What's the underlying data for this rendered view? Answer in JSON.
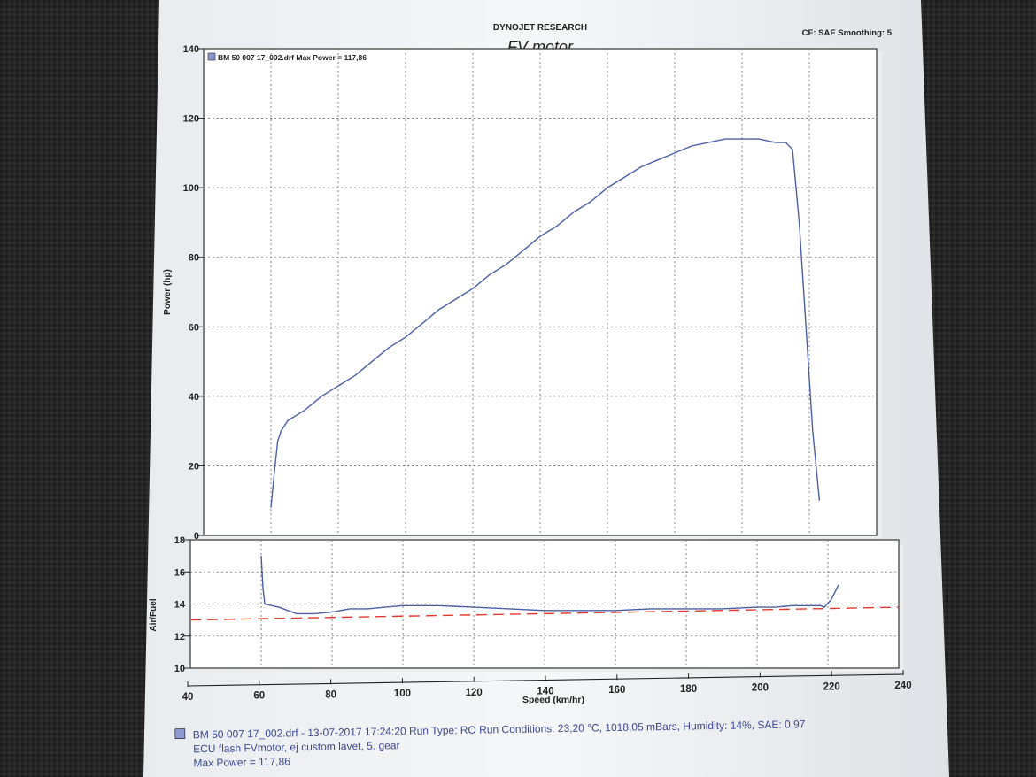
{
  "header": {
    "company": "DYNOJET RESEARCH",
    "title": "FV motor",
    "settings": "CF: SAE  Smoothing: 5"
  },
  "colors": {
    "curve": "#4a5fa6",
    "afr_reference": "#e03a2e",
    "paper": "#f4f5f7",
    "background": "#242424"
  },
  "chart_data": [
    {
      "type": "line",
      "title": "FV motor",
      "legend_label": "BM 50 007 17_002.drf Max Power = 117,86",
      "legend_position": "top-left",
      "ylabel": "Power (hp)",
      "xlim": [
        40,
        240
      ],
      "ylim": [
        0,
        140
      ],
      "yticks": [
        0,
        20,
        40,
        60,
        80,
        100,
        120,
        140
      ],
      "grid": true,
      "series": [
        {
          "name": "BM 50 007 17_002.drf",
          "points": [
            [
              60,
              8
            ],
            [
              61,
              18
            ],
            [
              62,
              27
            ],
            [
              63,
              30
            ],
            [
              65,
              33
            ],
            [
              70,
              36
            ],
            [
              75,
              40
            ],
            [
              80,
              43
            ],
            [
              85,
              46
            ],
            [
              90,
              50
            ],
            [
              95,
              54
            ],
            [
              100,
              57
            ],
            [
              105,
              61
            ],
            [
              110,
              65
            ],
            [
              115,
              68
            ],
            [
              120,
              71
            ],
            [
              125,
              75
            ],
            [
              130,
              78
            ],
            [
              135,
              82
            ],
            [
              140,
              86
            ],
            [
              145,
              89
            ],
            [
              150,
              93
            ],
            [
              155,
              96
            ],
            [
              160,
              100
            ],
            [
              165,
              103
            ],
            [
              170,
              106
            ],
            [
              175,
              108
            ],
            [
              180,
              110
            ],
            [
              185,
              112
            ],
            [
              190,
              113
            ],
            [
              195,
              114
            ],
            [
              200,
              114
            ],
            [
              205,
              114
            ],
            [
              210,
              113
            ],
            [
              213,
              113
            ],
            [
              215,
              111
            ],
            [
              217,
              90
            ],
            [
              219,
              60
            ],
            [
              221,
              30
            ],
            [
              223,
              10
            ]
          ]
        }
      ]
    },
    {
      "type": "line",
      "ylabel": "Air/Fuel",
      "xlabel": "Speed (km/hr)",
      "xlim": [
        40,
        240
      ],
      "ylim": [
        10,
        18
      ],
      "yticks": [
        10,
        12,
        14,
        16,
        18
      ],
      "xticks": [
        40,
        60,
        80,
        100,
        120,
        140,
        160,
        180,
        200,
        220,
        240
      ],
      "grid": true,
      "series": [
        {
          "name": "BM 50 007 17_002.drf",
          "points": [
            [
              60,
              17
            ],
            [
              60.5,
              15
            ],
            [
              61,
              14
            ],
            [
              65,
              13.8
            ],
            [
              70,
              13.4
            ],
            [
              75,
              13.4
            ],
            [
              80,
              13.5
            ],
            [
              85,
              13.7
            ],
            [
              90,
              13.7
            ],
            [
              95,
              13.8
            ],
            [
              100,
              13.9
            ],
            [
              110,
              13.9
            ],
            [
              120,
              13.8
            ],
            [
              130,
              13.7
            ],
            [
              140,
              13.6
            ],
            [
              150,
              13.6
            ],
            [
              160,
              13.6
            ],
            [
              170,
              13.7
            ],
            [
              180,
              13.7
            ],
            [
              190,
              13.7
            ],
            [
              200,
              13.8
            ],
            [
              205,
              13.8
            ],
            [
              210,
              13.9
            ],
            [
              215,
              13.9
            ],
            [
              218,
              13.9
            ],
            [
              219,
              13.8
            ],
            [
              221,
              14.3
            ],
            [
              223,
              15.2
            ]
          ]
        },
        {
          "name": "reference",
          "dashed": true,
          "points": [
            [
              40,
              13.0
            ],
            [
              240,
              13.8
            ]
          ]
        }
      ]
    }
  ],
  "footer": {
    "line1": "BM 50 007 17_002.drf - 13-07-2017 17:24:20  Run Type: RO  Run Conditions: 23,20 °C, 1018,05 mBars,  Humidity:  14%, SAE: 0,97",
    "line2": "ECU flash FVmotor, ej custom lavet, 5. gear",
    "line3": "Max Power = 117,86"
  }
}
